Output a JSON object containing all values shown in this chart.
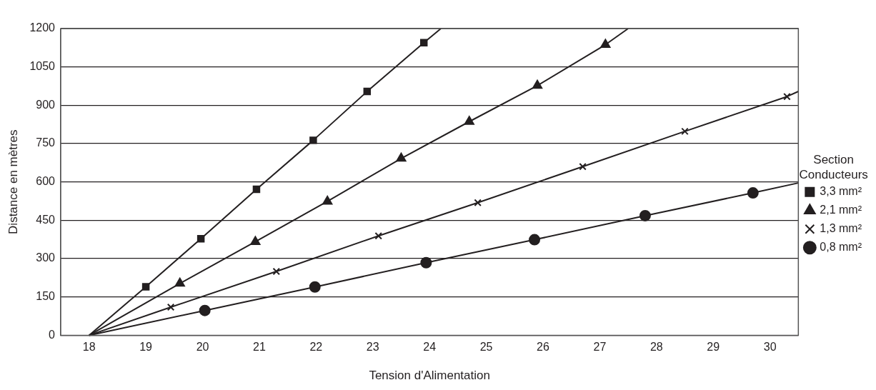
{
  "chart_data": {
    "type": "line",
    "xlabel": "Tension d'Alimentation",
    "ylabel": "Distance en mètres",
    "legend_title": "Section\nConducteurs",
    "legend": "right",
    "grid": "y",
    "line_style": "solid",
    "xlim": [
      17.5,
      30.5
    ],
    "xticks": [
      18,
      19,
      20,
      21,
      22,
      23,
      24,
      25,
      26,
      27,
      28,
      29,
      30
    ],
    "ylim": [
      0,
      1200
    ],
    "yticks": [
      0,
      150,
      300,
      450,
      600,
      750,
      900,
      1050,
      1200
    ],
    "series": [
      {
        "name": "3,3 mm²",
        "color": "#231f20",
        "marker": "square",
        "x": [
          19,
          19.97,
          20.95,
          21.95,
          22.9,
          23.9
        ],
        "values": [
          190,
          378,
          571,
          763,
          954,
          1145
        ]
      },
      {
        "name": "2,1 mm²",
        "color": "#231f20",
        "marker": "triangle",
        "x": [
          19.6,
          20.93,
          22.2,
          23.5,
          24.7,
          25.9,
          27.1
        ],
        "values": [
          203,
          366,
          524,
          692,
          836,
          977,
          1137
        ]
      },
      {
        "name": "1,3 mm²",
        "color": "#231f20",
        "marker": "cross",
        "x": [
          19.44,
          21.3,
          23.1,
          24.85,
          26.7,
          28.5,
          30.3
        ],
        "values": [
          110,
          250,
          389,
          519,
          660,
          798,
          934
        ]
      },
      {
        "name": "0,8 mm²",
        "color": "#231f20",
        "marker": "circle",
        "x": [
          20.04,
          21.98,
          23.94,
          25.85,
          27.8,
          29.7
        ],
        "values": [
          97,
          189,
          284,
          374,
          468,
          557
        ]
      },
      {
        "type": "line",
        "color": "#231f20",
        "marker": "none",
        "x": [
          18,
          19
        ],
        "values": [
          0,
          190
        ]
      },
      {
        "type": "line",
        "color": "#231f20",
        "marker": "none",
        "x": [
          23.9,
          24.2
        ],
        "values": [
          1145,
          1200
        ]
      },
      {
        "type": "line",
        "color": "#231f20",
        "marker": "none",
        "x": [
          18,
          19.6
        ],
        "values": [
          0,
          203
        ]
      },
      {
        "type": "line",
        "color": "#231f20",
        "marker": "none",
        "x": [
          27.1,
          27.5
        ],
        "values": [
          1137,
          1200
        ]
      },
      {
        "type": "line",
        "color": "#231f20",
        "marker": "none",
        "x": [
          18,
          19.44
        ],
        "values": [
          0,
          110
        ]
      },
      {
        "type": "line",
        "color": "#231f20",
        "marker": "none",
        "x": [
          30.3,
          30.5
        ],
        "values": [
          934,
          954
        ]
      },
      {
        "type": "line",
        "color": "#231f20",
        "marker": "none",
        "x": [
          18,
          20.04
        ],
        "values": [
          0,
          97
        ]
      },
      {
        "type": "line",
        "color": "#231f20",
        "marker": "none",
        "x": [
          29.7,
          30.5
        ],
        "values": [
          557,
          596
        ]
      }
    ]
  }
}
